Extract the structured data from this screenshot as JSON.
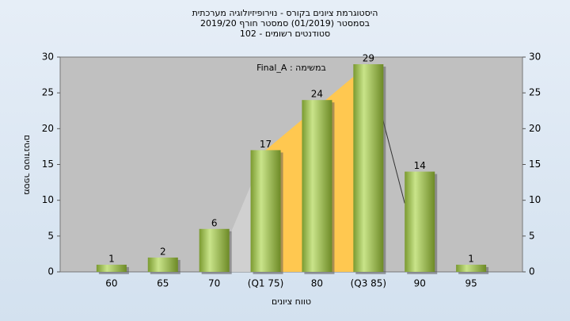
{
  "chart_data": {
    "type": "bar",
    "title": [
      "היסטוגרמת ציונים בקורס - נוירופיזיולוגיה מערכתית",
      "בסמסטר  (01/2019)  סמסטר חורף 2019/20",
      "סטודנטים רשומים - 102"
    ],
    "annotation": "במשימה : Final_A",
    "x_label": "טווח ציונים",
    "y_label": "מספר סטודנטים",
    "categories": [
      "60",
      "65",
      "70",
      "(Q1 75)",
      "80",
      "(Q3 85)",
      "90",
      "95"
    ],
    "values": [
      1,
      2,
      6,
      17,
      24,
      29,
      14,
      1
    ],
    "color": "#8fb544",
    "ylim": [
      0,
      30
    ],
    "yticks": [
      0,
      5,
      10,
      15,
      20,
      25,
      30
    ]
  }
}
